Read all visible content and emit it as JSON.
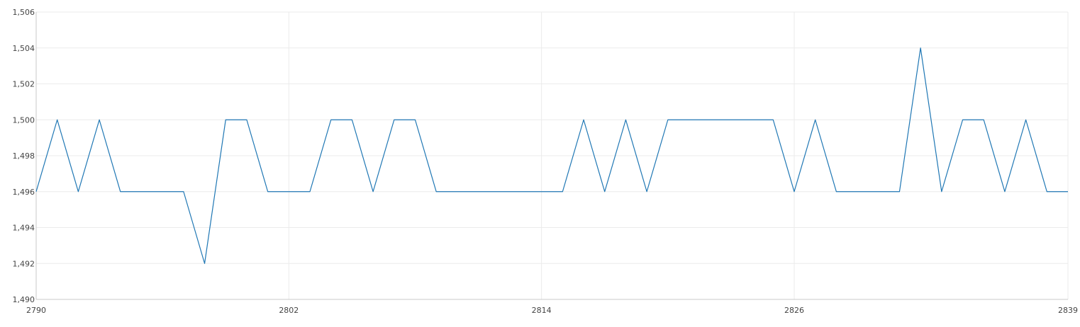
{
  "chart_data": {
    "type": "line",
    "title": "",
    "xlabel": "",
    "ylabel": "",
    "xlim": [
      2790,
      2839
    ],
    "ylim": [
      1490,
      1506
    ],
    "x_ticks": [
      2790,
      2802,
      2814,
      2826,
      2839
    ],
    "y_ticks": [
      1490,
      1492,
      1494,
      1496,
      1498,
      1500,
      1502,
      1504,
      1506
    ],
    "grid": true,
    "legend": "none",
    "colors": {
      "series": "#1f77b4"
    },
    "series": [
      {
        "x": [
          2790,
          2791,
          2792,
          2793,
          2794,
          2795,
          2796,
          2797,
          2798,
          2799,
          2800,
          2801,
          2802,
          2803,
          2804,
          2805,
          2806,
          2807,
          2808,
          2809,
          2810,
          2811,
          2812,
          2813,
          2814,
          2815,
          2816,
          2817,
          2818,
          2819,
          2820,
          2821,
          2822,
          2823,
          2824,
          2825,
          2826,
          2827,
          2828,
          2829,
          2830,
          2831,
          2832,
          2833,
          2834,
          2835,
          2836,
          2837,
          2838,
          2839
        ],
        "y": [
          1496,
          1500,
          1496,
          1500,
          1496,
          1496,
          1496,
          1496,
          1492,
          1500,
          1500,
          1496,
          1496,
          1496,
          1500,
          1500,
          1496,
          1500,
          1500,
          1496,
          1496,
          1496,
          1496,
          1496,
          1496,
          1496,
          1500,
          1496,
          1500,
          1496,
          1500,
          1500,
          1500,
          1500,
          1500,
          1500,
          1496,
          1500,
          1496,
          1496,
          1496,
          1496,
          1504,
          1496,
          1500,
          1500,
          1496,
          1500,
          1496,
          1496
        ]
      }
    ]
  }
}
